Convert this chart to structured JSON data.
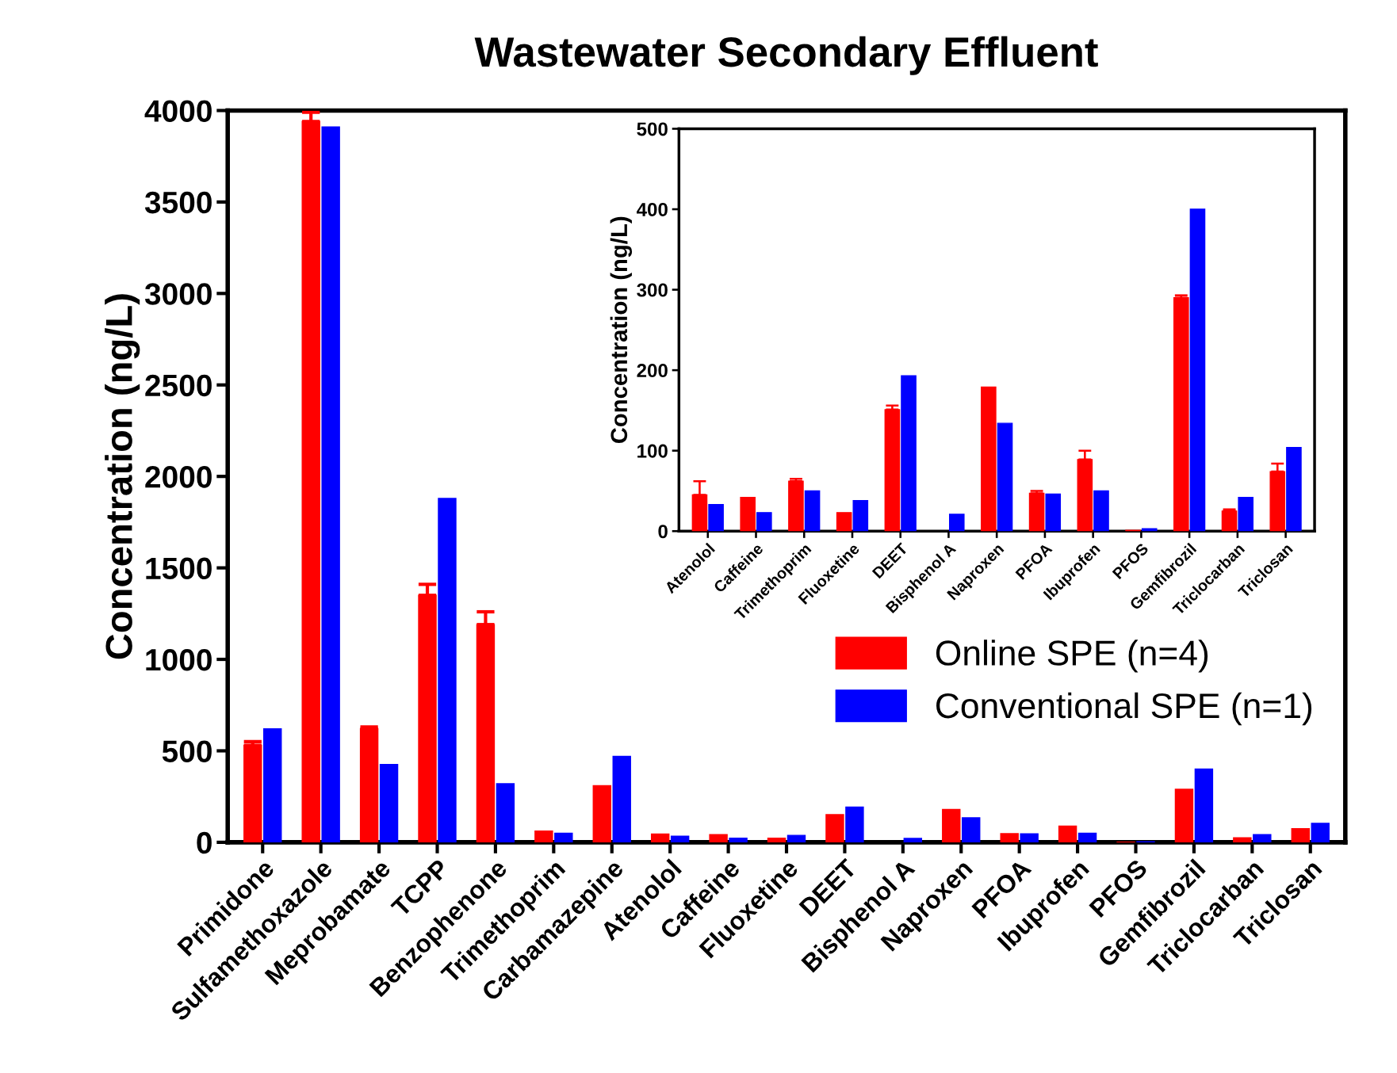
{
  "chart_data": [
    {
      "type": "bar",
      "title": "Wastewater Secondary Effluent",
      "ylabel": "Concentration (ng/L)",
      "categories": [
        "Primidone",
        "Sulfamethoxazole",
        "Meprobamate",
        "TCPP",
        "Benzophenone",
        "Trimethoprim",
        "Carbamazepine",
        "Atenolol",
        "Caffeine",
        "Fluoxetine",
        "DEET",
        "Bisphenol A",
        "Naproxen",
        "PFOA",
        "Ibuprofen",
        "PFOS",
        "Gemfibrozil",
        "Triclocarban",
        "Triclosan"
      ],
      "series": [
        {
          "name": "Online SPE (n=4)",
          "color": "#ff0000",
          "values": [
            530,
            3940,
            620,
            1350,
            1190,
            62,
            310,
            45,
            42,
            23,
            151,
            null,
            179,
            47,
            89,
            1,
            290,
            25,
            74
          ],
          "errors": [
            [
              530,
              550
            ],
            [
              3940,
              3990
            ],
            [
              620,
              630
            ],
            [
              1350,
              1410
            ],
            [
              1190,
              1260
            ],
            null,
            null,
            null,
            null,
            null,
            null,
            null,
            null,
            null,
            null,
            null,
            null,
            null,
            null
          ]
        },
        {
          "name": "Conventional SPE (n=1)",
          "color": "#0000ff",
          "values": [
            620,
            3910,
            425,
            1880,
            320,
            50,
            470,
            33,
            23,
            38,
            193,
            21,
            134,
            46,
            50,
            3,
            400,
            42,
            104
          ]
        }
      ],
      "ylim": [
        0,
        4000
      ],
      "yticks": [
        0,
        500,
        1000,
        1500,
        2000,
        2500,
        3000,
        3500,
        4000
      ],
      "legend": "right",
      "grid": false
    },
    {
      "type": "bar",
      "ylabel": "Concentration (ng/L)",
      "categories": [
        "Atenolol",
        "Caffeine",
        "Trimethoprim",
        "Fluoxetine",
        "DEET",
        "Bisphenol A",
        "Naproxen",
        "PFOA",
        "Ibuprofen",
        "PFOS",
        "Gemfibrozil",
        "Triclocarban",
        "Triclosan"
      ],
      "series": [
        {
          "color": "#ff0000",
          "values": [
            45,
            42,
            62,
            23,
            151,
            null,
            179,
            47,
            89,
            1,
            290,
            25,
            74
          ],
          "errors": [
            [
              45,
              62
            ],
            null,
            [
              62,
              65
            ],
            null,
            [
              151,
              156
            ],
            null,
            null,
            [
              47,
              50
            ],
            [
              89,
              100
            ],
            null,
            [
              290,
              293
            ],
            [
              25,
              27
            ],
            [
              74,
              84
            ]
          ]
        },
        {
          "color": "#0000ff",
          "values": [
            33,
            23,
            50,
            38,
            193,
            21,
            134,
            46,
            50,
            3,
            400,
            42,
            104
          ]
        }
      ],
      "ylim": [
        0,
        500
      ],
      "yticks": [
        0,
        100,
        200,
        300,
        400,
        500
      ],
      "grid": false
    }
  ]
}
